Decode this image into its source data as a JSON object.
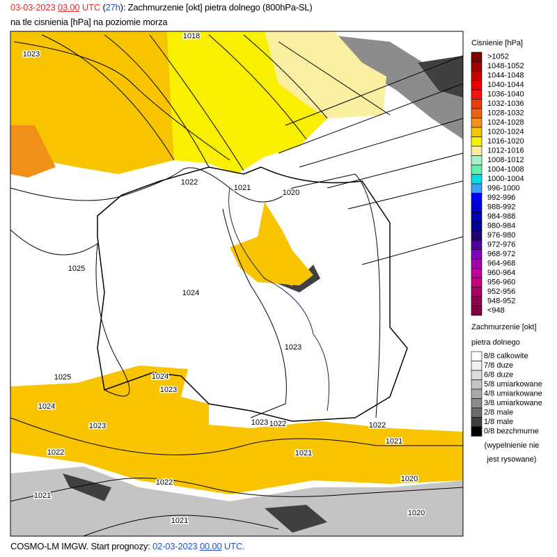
{
  "header": {
    "line1": [
      {
        "text": "03-03-2023",
        "color": "#e03030"
      },
      {
        "text": "03.00",
        "color": "#e03030",
        "underline": true
      },
      {
        "text": "UTC",
        "color": "#e03030"
      },
      {
        "text": "(",
        "color": "#000000"
      },
      {
        "text": "27h",
        "color": "#2050d0"
      },
      {
        "text": "): Zachmurzenie [okt] pietra dolnego (800hPa-SL)",
        "color": "#000000"
      }
    ],
    "line2": "na tle cisnienia [hPa] na poziomie morza"
  },
  "pressure_legend": {
    "title": "Cisnienie [hPa]",
    "items": [
      {
        "label": ">1052",
        "color": "#800000"
      },
      {
        "label": "1048-1052",
        "color": "#a00000"
      },
      {
        "label": "1044-1048",
        "color": "#c80000"
      },
      {
        "label": "1040-1044",
        "color": "#e80000"
      },
      {
        "label": "1036-1040",
        "color": "#ff1010"
      },
      {
        "label": "1032-1036",
        "color": "#e83c10"
      },
      {
        "label": "1028-1032",
        "color": "#e86414"
      },
      {
        "label": "1024-1028",
        "color": "#f09018"
      },
      {
        "label": "1020-1024",
        "color": "#f8c400"
      },
      {
        "label": "1016-1020",
        "color": "#f8f000"
      },
      {
        "label": "1012-1016",
        "color": "#f8f0a0"
      },
      {
        "label": "1008-1012",
        "color": "#a8f0c8"
      },
      {
        "label": "1004-1008",
        "color": "#60f0b0"
      },
      {
        "label": "1000-1004",
        "color": "#00e0e0"
      },
      {
        "label": "996-1000",
        "color": "#3ca0f0"
      },
      {
        "label": "992-996",
        "color": "#0000ff"
      },
      {
        "label": "988-992",
        "color": "#0000d8"
      },
      {
        "label": "984-988",
        "color": "#0000b4"
      },
      {
        "label": "980-984",
        "color": "#000090"
      },
      {
        "label": "976-980",
        "color": "#200070"
      },
      {
        "label": "972-976",
        "color": "#5000a0"
      },
      {
        "label": "968-972",
        "color": "#8000c0"
      },
      {
        "label": "964-968",
        "color": "#a000b0"
      },
      {
        "label": "960-964",
        "color": "#c000a0"
      },
      {
        "label": "956-960",
        "color": "#c80080"
      },
      {
        "label": "952-956",
        "color": "#a80064"
      },
      {
        "label": "948-952",
        "color": "#900050"
      },
      {
        "label": "<948",
        "color": "#800040"
      }
    ]
  },
  "cloud_legend": {
    "title_line1": "Zachmurzenie [okt]",
    "title_line2": "pietra dolnego",
    "items": [
      {
        "label": "8/8 calkowite",
        "color": "#ffffff"
      },
      {
        "label": "7/8 duze",
        "color": "#f0f0f0"
      },
      {
        "label": "6/8 duze",
        "color": "#dcdcdc"
      },
      {
        "label": "5/8 umiarkowane",
        "color": "#c4c4c4"
      },
      {
        "label": "4/8 umiarkowane",
        "color": "#a8a8a8"
      },
      {
        "label": "3/8 umiarkowane",
        "color": "#8c8c8c"
      },
      {
        "label": "2/8 male",
        "color": "#6c6c6c"
      },
      {
        "label": "1/8 male",
        "color": "#404040"
      },
      {
        "label": "0/8 bezchmurne",
        "color": "#000000"
      }
    ],
    "note_line1": "(wypelnienie nie",
    "note_line2": "jest rysowane)"
  },
  "map": {
    "isobar_labels": [
      "1018",
      "1023",
      "1022",
      "1021",
      "1020",
      "1025",
      "1024",
      "1023",
      "1025",
      "1024",
      "1023",
      "1024",
      "1023",
      "1023",
      "1022",
      "1022",
      "1021",
      "1022",
      "1021",
      "1020",
      "1022",
      "1021",
      "1020",
      "1021"
    ]
  },
  "footer": [
    {
      "text": "COSMO-LM IMGW. Start prognozy:",
      "color": "#000000"
    },
    {
      "text": "02-03-2023",
      "color": "#2050d0"
    },
    {
      "text": "00.00",
      "color": "#2050d0",
      "underline": true
    },
    {
      "text": "UTC.",
      "color": "#2050d0"
    }
  ]
}
